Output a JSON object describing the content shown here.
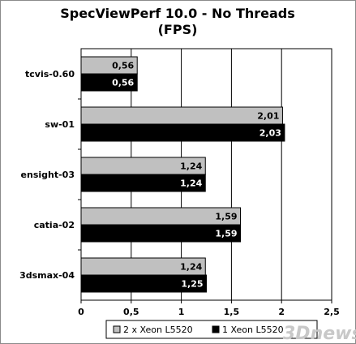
{
  "chart_data": {
    "type": "bar",
    "orientation": "horizontal",
    "title": "SpecViewPerf 10.0 - No Threads",
    "subtitle": "(FPS)",
    "categories": [
      "tcvis-0.60",
      "sw-01",
      "ensight-03",
      "catia-02",
      "3dsmax-04"
    ],
    "series": [
      {
        "name": "2 x Xeon L5520",
        "values": [
          0.56,
          2.01,
          1.24,
          1.59,
          1.24
        ],
        "labels": [
          "0,56",
          "2,01",
          "1,24",
          "1,59",
          "1,24"
        ],
        "color": "#c0c0c0",
        "label_color": "#000000"
      },
      {
        "name": "1 Xeon L5520",
        "values": [
          0.56,
          2.03,
          1.24,
          1.59,
          1.25
        ],
        "labels": [
          "0,56",
          "2,03",
          "1,24",
          "1,59",
          "1,25"
        ],
        "color": "#000000",
        "label_color": "#ffffff"
      }
    ],
    "xlim": [
      0,
      2.5
    ],
    "xticks": [
      "0",
      "0,5",
      "1",
      "1,5",
      "2",
      "2,5"
    ],
    "xtick_values": [
      0,
      0.5,
      1,
      1.5,
      2,
      2.5
    ],
    "grid": true,
    "legend_position": "bottom",
    "plot_background": "#ffffff",
    "watermark": "3Dnews"
  }
}
